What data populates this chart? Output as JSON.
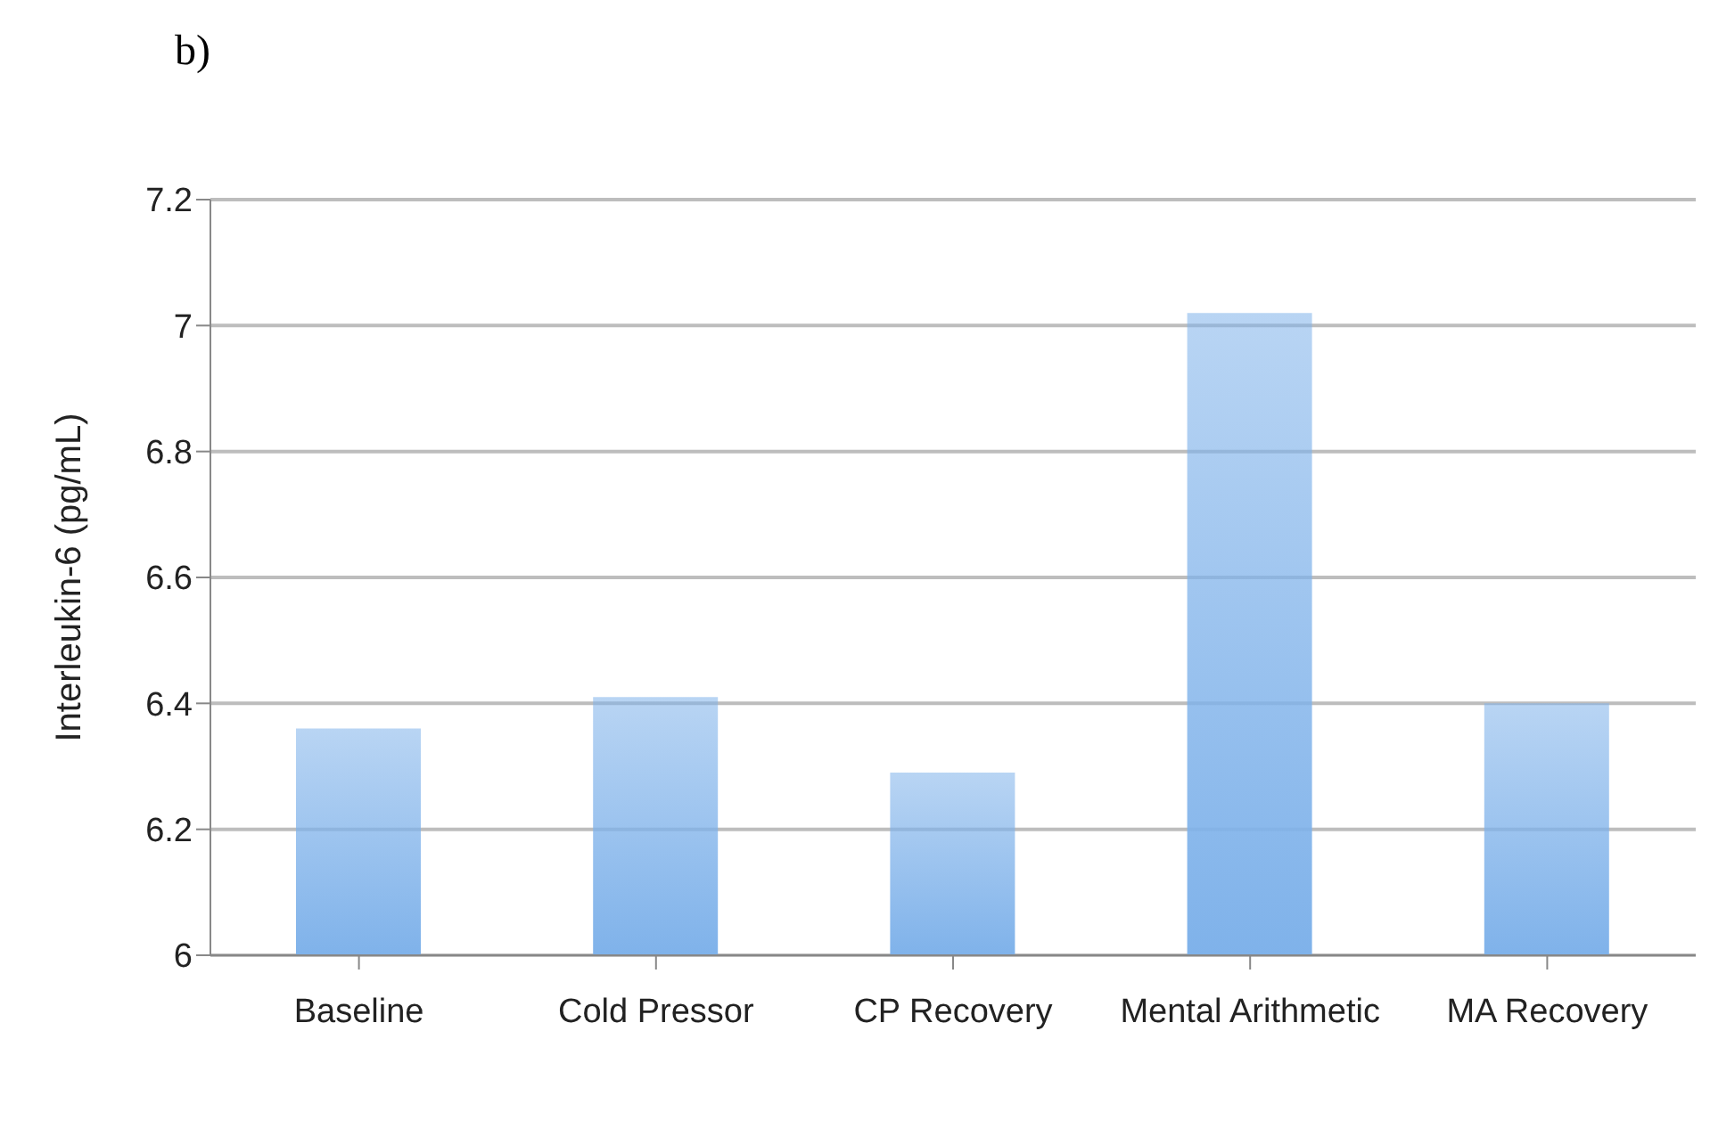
{
  "chart_data": {
    "type": "bar",
    "ylabel": "Interleukin-6 (pg/mL)",
    "annotations": [
      "b)"
    ],
    "categories": [
      "Baseline",
      "Cold Pressor",
      "CP Recovery",
      "Mental Arithmetic",
      "MA Recovery"
    ],
    "values": [
      6.36,
      6.41,
      6.29,
      7.02,
      6.4
    ],
    "color": "#7fb2ea",
    "ylim": [
      6,
      7.2
    ],
    "yticks": [
      6,
      6.2,
      6.4,
      6.6,
      6.8,
      7,
      7.2
    ],
    "grid": "y"
  }
}
